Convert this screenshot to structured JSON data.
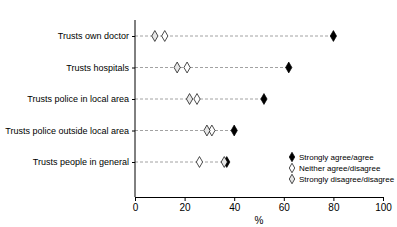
{
  "chart_data": {
    "type": "dot",
    "orientation": "horizontal",
    "categories": [
      "Trusts own doctor",
      "Trusts hospitals",
      "Trusts police in local area",
      "Trusts police outside local area",
      "Trusts people in general"
    ],
    "series": [
      {
        "name": "Strongly agree/agree",
        "color": "#000000",
        "marker": "diamond",
        "values": [
          80,
          62,
          52,
          40,
          37
        ]
      },
      {
        "name": "Neither agree/disagree",
        "color": "#ffffff",
        "marker": "diamond",
        "values": [
          12,
          21,
          25,
          31,
          26
        ]
      },
      {
        "name": "Strongly disagree/disagree",
        "color": "#e6e6e6",
        "marker": "diamond",
        "values": [
          8,
          17,
          22,
          29,
          36
        ]
      }
    ],
    "x_label": "%",
    "xlim": [
      0,
      100
    ],
    "xticks": [
      0,
      20,
      40,
      60,
      80,
      100
    ],
    "legend": "lower right",
    "grid": false
  }
}
